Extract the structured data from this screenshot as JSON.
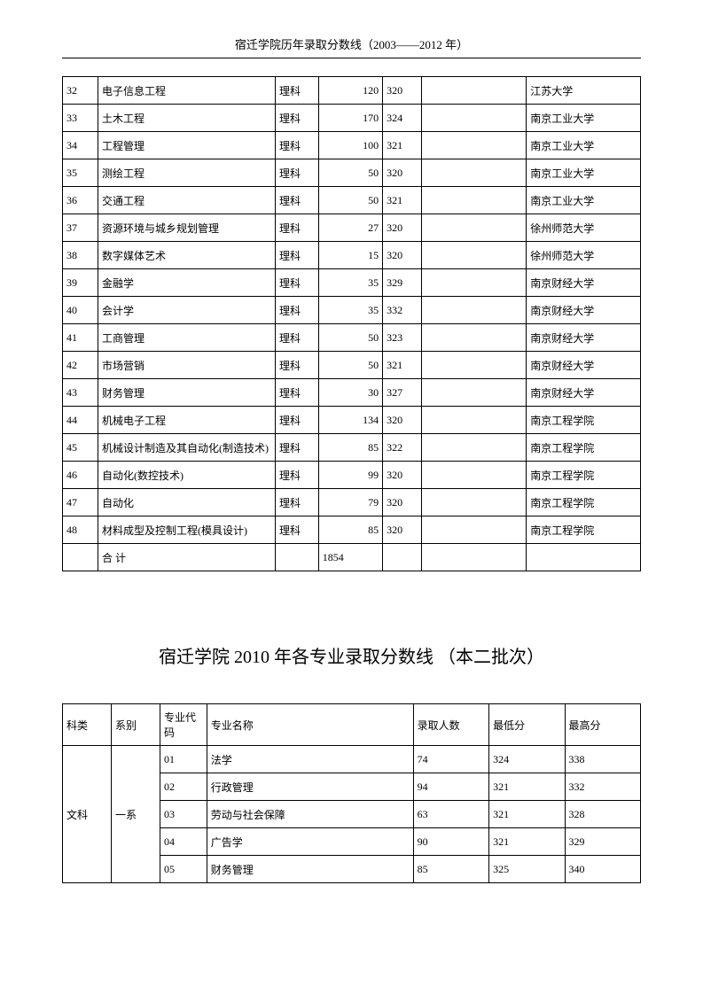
{
  "header": "宿迁学院历年录取分数线（2003——2012 年）",
  "table1": {
    "rows": [
      {
        "idx": "32",
        "major": "电子信息工程",
        "cat": "理科",
        "n1": "120",
        "n2": "320",
        "univ": "江苏大学"
      },
      {
        "idx": "33",
        "major": "土木工程",
        "cat": "理科",
        "n1": "170",
        "n2": "324",
        "univ": "南京工业大学"
      },
      {
        "idx": "34",
        "major": "工程管理",
        "cat": "理科",
        "n1": "100",
        "n2": "321",
        "univ": "南京工业大学"
      },
      {
        "idx": "35",
        "major": "测绘工程",
        "cat": "理科",
        "n1": "50",
        "n2": "320",
        "univ": "南京工业大学"
      },
      {
        "idx": "36",
        "major": "交通工程",
        "cat": "理科",
        "n1": "50",
        "n2": "321",
        "univ": "南京工业大学"
      },
      {
        "idx": "37",
        "major": "资源环境与城乡规划管理",
        "cat": "理科",
        "n1": "27",
        "n2": "320",
        "univ": "徐州师范大学"
      },
      {
        "idx": "38",
        "major": "数字媒体艺术",
        "cat": "理科",
        "n1": "15",
        "n2": "320",
        "univ": "徐州师范大学"
      },
      {
        "idx": "39",
        "major": "金融学",
        "cat": "理科",
        "n1": "35",
        "n2": "329",
        "univ": "南京财经大学"
      },
      {
        "idx": "40",
        "major": "会计学",
        "cat": "理科",
        "n1": "35",
        "n2": "332",
        "univ": "南京财经大学"
      },
      {
        "idx": "41",
        "major": "工商管理",
        "cat": "理科",
        "n1": "50",
        "n2": "323",
        "univ": "南京财经大学"
      },
      {
        "idx": "42",
        "major": "市场营销",
        "cat": "理科",
        "n1": "50",
        "n2": "321",
        "univ": "南京财经大学"
      },
      {
        "idx": "43",
        "major": "财务管理",
        "cat": "理科",
        "n1": "30",
        "n2": "327",
        "univ": "南京财经大学"
      },
      {
        "idx": "44",
        "major": "机械电子工程",
        "cat": "理科",
        "n1": "134",
        "n2": "320",
        "univ": "南京工程学院"
      },
      {
        "idx": "45",
        "major": "机械设计制造及其自动化(制造技术)",
        "cat": "理科",
        "n1": "85",
        "n2": "322",
        "univ": "南京工程学院"
      },
      {
        "idx": "46",
        "major": "自动化(数控技术)",
        "cat": "理科",
        "n1": "99",
        "n2": "320",
        "univ": "南京工程学院"
      },
      {
        "idx": "47",
        "major": "自动化",
        "cat": "理科",
        "n1": "79",
        "n2": "320",
        "univ": "南京工程学院"
      },
      {
        "idx": "48",
        "major": "材料成型及控制工程(模具设计)",
        "cat": "理科",
        "n1": "85",
        "n2": "320",
        "univ": "南京工程学院"
      }
    ],
    "total_label": "合  计",
    "total_value": "1854"
  },
  "mid_title": "宿迁学院 2010 年各专业录取分数线 （本二批次）",
  "table2": {
    "headers": {
      "subject": "科类",
      "dept": "系别",
      "code": "专业代码",
      "name": "专业名称",
      "enroll": "录取人数",
      "min": "最低分",
      "max": "最高分"
    },
    "subject": "文科",
    "dept": "一系",
    "rows": [
      {
        "code": "01",
        "name": "法学",
        "enroll": "74",
        "min": "324",
        "max": "338"
      },
      {
        "code": "02",
        "name": "行政管理",
        "enroll": "94",
        "min": "321",
        "max": "332"
      },
      {
        "code": "03",
        "name": "劳动与社会保障",
        "enroll": "63",
        "min": "321",
        "max": "328"
      },
      {
        "code": "04",
        "name": "广告学",
        "enroll": "90",
        "min": "321",
        "max": "329"
      },
      {
        "code": "05",
        "name": "财务管理",
        "enroll": "85",
        "min": "325",
        "max": "340"
      }
    ]
  }
}
